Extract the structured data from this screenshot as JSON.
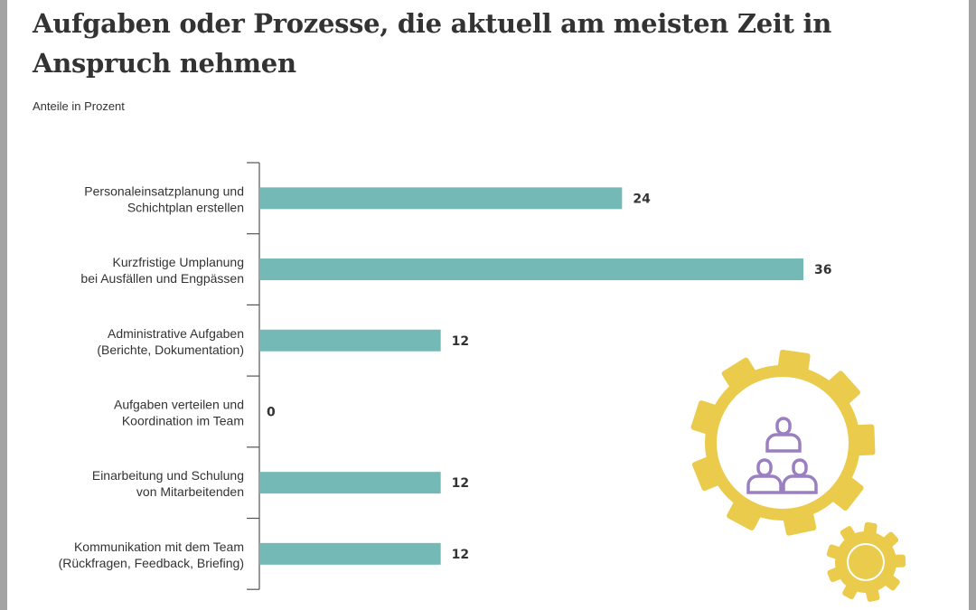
{
  "title": "Aufgaben oder Prozesse, die aktuell am meisten Zeit in Anspruch nehmen",
  "subtitle": "Anteile in Prozent",
  "illustration": {
    "icon": "gears-with-team-hierarchy-icon",
    "gear_color": "#ebcb4b",
    "people_color": "#9a80c0"
  },
  "chart_data": {
    "type": "bar",
    "orientation": "horizontal",
    "title": "Aufgaben oder Prozesse, die aktuell am meisten Zeit in Anspruch nehmen",
    "subtitle": "Anteile in Prozent",
    "categories": [
      [
        "Personaleinsatzplanung und",
        "Schichtplan erstellen"
      ],
      [
        "Kurzfristige Umplanung",
        "bei Ausfällen und Engpässen"
      ],
      [
        "Administrative Aufgaben",
        "(Berichte, Dokumentation)"
      ],
      [
        "Aufgaben verteilen und",
        "Koordination im Team"
      ],
      [
        "Einarbeitung und Schulung",
        "von Mitarbeitenden"
      ],
      [
        "Kommunikation mit dem Team",
        "(Rückfragen, Feedback, Briefing)"
      ]
    ],
    "values": [
      24,
      36,
      12,
      0,
      12,
      12
    ],
    "bar_color": "#74b9b5",
    "xlim": [
      0,
      36
    ],
    "grid": false
  }
}
